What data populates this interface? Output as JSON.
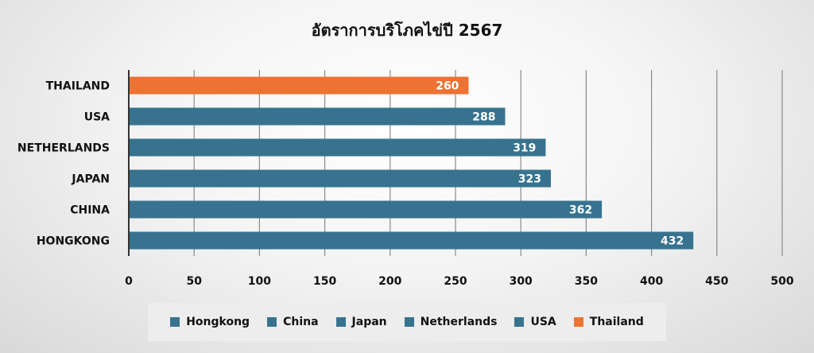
{
  "chart_data": {
    "type": "bar",
    "orientation": "horizontal",
    "title": "อัตราการบริโภคไข่ปี 2567",
    "xlabel": "",
    "ylabel": "",
    "categories": [
      "THAILAND",
      "USA",
      "NETHERLANDS",
      "JAPAN",
      "CHINA",
      "HONGKONG"
    ],
    "values": [
      260,
      288,
      319,
      323,
      362,
      432
    ],
    "bar_colors": [
      "#ED7332",
      "#37738F",
      "#37738F",
      "#37738F",
      "#37738F",
      "#37738F"
    ],
    "xlim": [
      0,
      500
    ],
    "xticks": [
      0,
      50,
      100,
      150,
      200,
      250,
      300,
      350,
      400,
      450,
      500
    ],
    "grid": "vertical",
    "data_labels": true,
    "legend": {
      "position": "bottom",
      "entries": [
        {
          "name": "Hongkong",
          "color": "#37738F"
        },
        {
          "name": "China",
          "color": "#37738F"
        },
        {
          "name": "Japan",
          "color": "#37738F"
        },
        {
          "name": "Netherlands",
          "color": "#37738F"
        },
        {
          "name": "USA",
          "color": "#37738F"
        },
        {
          "name": "Thailand",
          "color": "#ED7332"
        }
      ]
    }
  }
}
